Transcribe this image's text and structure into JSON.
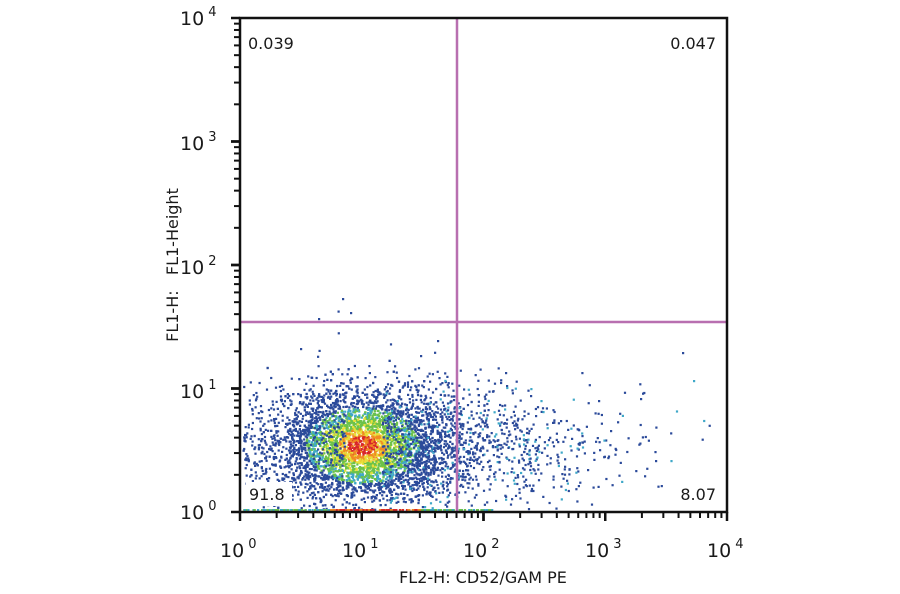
{
  "chart_data": {
    "type": "scatter",
    "subtype": "flow-cytometry-density-dot-plot",
    "title": "",
    "xlabel": "FL2-H: CD52/GAM PE",
    "ylabel": "FL1-H:   FL1-Height",
    "x_scale": "log",
    "y_scale": "log",
    "xlim": [
      1,
      10000
    ],
    "ylim": [
      1,
      10000
    ],
    "x_ticks": [
      {
        "base": "10",
        "exp": "0",
        "value": 1
      },
      {
        "base": "10",
        "exp": "1",
        "value": 10
      },
      {
        "base": "10",
        "exp": "2",
        "value": 100
      },
      {
        "base": "10",
        "exp": "3",
        "value": 1000
      },
      {
        "base": "10",
        "exp": "4",
        "value": 10000
      }
    ],
    "y_ticks": [
      {
        "base": "10",
        "exp": "0",
        "value": 1
      },
      {
        "base": "10",
        "exp": "1",
        "value": 10
      },
      {
        "base": "10",
        "exp": "2",
        "value": 100
      },
      {
        "base": "10",
        "exp": "3",
        "value": 1000
      },
      {
        "base": "10",
        "exp": "4",
        "value": 10000
      }
    ],
    "grid": false,
    "legend": null,
    "quadrant_gates": {
      "x_threshold": 63,
      "y_threshold": 36,
      "line_color": "#b86fb0"
    },
    "quadrants": [
      {
        "position": "upper-left",
        "label": "0.039",
        "value": 0.039
      },
      {
        "position": "upper-right",
        "label": "0.047",
        "value": 0.047
      },
      {
        "position": "lower-left",
        "label": "91.8",
        "value": 91.8
      },
      {
        "position": "lower-right",
        "label": "8.07",
        "value": 8.07
      }
    ],
    "population": {
      "center": {
        "x": 10,
        "y": 3.5
      },
      "description": "Dense main population centered near FL2 ~10, FL1 ~3.5, with a tail extending to FL2 ~1000",
      "density_colors": [
        "#2b4a9a",
        "#3fa8c8",
        "#6cc24a",
        "#e8e03a",
        "#f08a24",
        "#d8262a"
      ]
    }
  }
}
